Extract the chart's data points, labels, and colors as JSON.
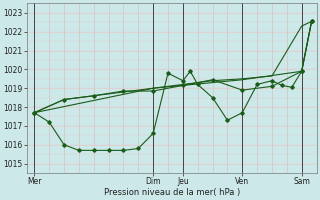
{
  "title": "",
  "xlabel": "Pression niveau de la mer( hPa )",
  "ylim": [
    1014.5,
    1023.5
  ],
  "yticks": [
    1015,
    1016,
    1017,
    1018,
    1019,
    1020,
    1021,
    1022,
    1023
  ],
  "bg_color": "#cce8e8",
  "line_color": "#1a5c1a",
  "grid_color_h": "#e8c8c8",
  "grid_color_v": "#d8b8b8",
  "vline_color": "#444444",
  "day_labels": [
    "Mer",
    "Dim",
    "Jeu",
    "Ven",
    "Sam"
  ],
  "day_positions": [
    0,
    48,
    60,
    84,
    108
  ],
  "xlim": [
    -3,
    114
  ],
  "series1": [
    [
      0,
      1017.7
    ],
    [
      12,
      1018.4
    ],
    [
      24,
      1018.6
    ],
    [
      36,
      1018.8
    ],
    [
      48,
      1019.0
    ],
    [
      60,
      1019.2
    ],
    [
      72,
      1019.4
    ],
    [
      84,
      1019.5
    ],
    [
      96,
      1019.65
    ],
    [
      108,
      1022.3
    ],
    [
      112,
      1022.55
    ]
  ],
  "series2": [
    [
      0,
      1017.7
    ],
    [
      6,
      1017.2
    ],
    [
      12,
      1016.0
    ],
    [
      18,
      1015.7
    ],
    [
      24,
      1015.7
    ],
    [
      30,
      1015.7
    ],
    [
      36,
      1015.7
    ],
    [
      42,
      1015.8
    ],
    [
      48,
      1016.6
    ],
    [
      54,
      1019.8
    ],
    [
      60,
      1019.4
    ],
    [
      63,
      1019.9
    ],
    [
      66,
      1019.2
    ],
    [
      72,
      1018.5
    ],
    [
      78,
      1017.3
    ],
    [
      84,
      1017.7
    ],
    [
      90,
      1019.2
    ],
    [
      96,
      1019.4
    ],
    [
      100,
      1019.15
    ],
    [
      104,
      1019.05
    ],
    [
      108,
      1019.9
    ],
    [
      112,
      1022.55
    ]
  ],
  "series3": [
    [
      0,
      1017.7
    ],
    [
      12,
      1018.4
    ],
    [
      24,
      1018.6
    ],
    [
      36,
      1018.85
    ],
    [
      48,
      1018.85
    ],
    [
      60,
      1019.15
    ],
    [
      72,
      1019.45
    ],
    [
      84,
      1018.9
    ],
    [
      96,
      1019.1
    ],
    [
      108,
      1019.9
    ],
    [
      112,
      1022.55
    ]
  ],
  "series4": [
    [
      0,
      1017.7
    ],
    [
      48,
      1019.0
    ],
    [
      84,
      1019.45
    ],
    [
      108,
      1019.9
    ],
    [
      112,
      1022.55
    ]
  ]
}
